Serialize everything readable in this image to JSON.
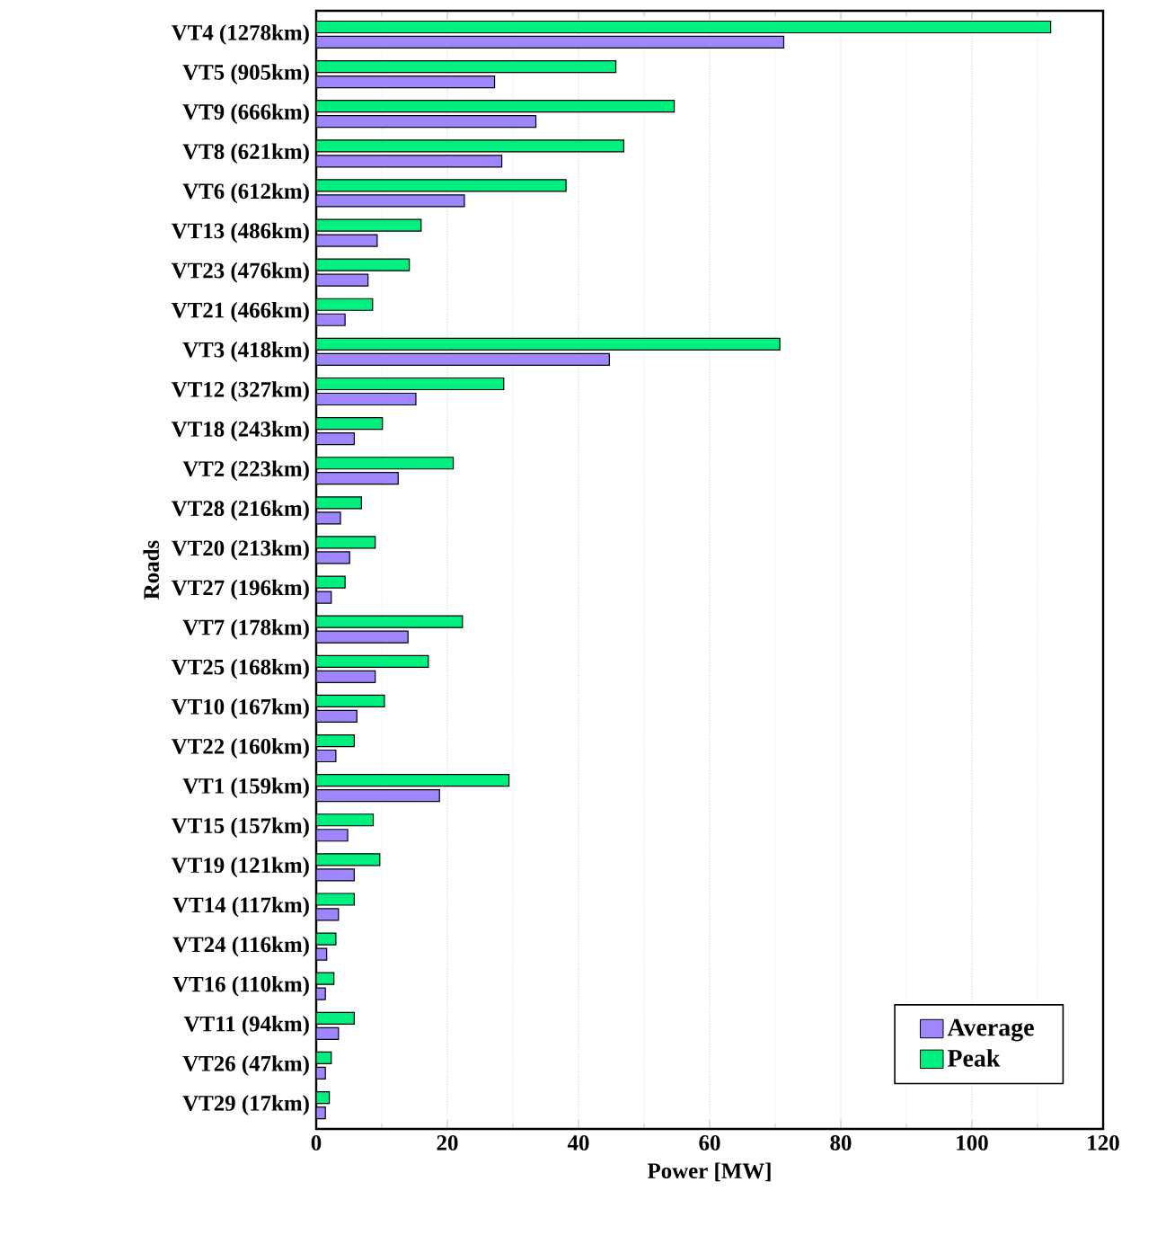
{
  "chart_data": {
    "type": "bar",
    "orientation": "horizontal",
    "xlabel": "Power [MW]",
    "ylabel": "Roads",
    "categories": [
      "VT4 (1278km)",
      "VT5 (905km)",
      "VT9 (666km)",
      "VT8 (621km)",
      "VT6 (612km)",
      "VT13 (486km)",
      "VT23 (476km)",
      "VT21 (466km)",
      "VT3 (418km)",
      "VT12 (327km)",
      "VT18 (243km)",
      "VT2 (223km)",
      "VT28 (216km)",
      "VT20 (213km)",
      "VT27 (196km)",
      "VT7 (178km)",
      "VT25 (168km)",
      "VT10 (167km)",
      "VT22 (160km)",
      "VT1 (159km)",
      "VT15 (157km)",
      "VT19 (121km)",
      "VT14 (117km)",
      "VT24 (116km)",
      "VT16 (110km)",
      "VT11 (94km)",
      "VT26 (47km)",
      "VT29 (17km)"
    ],
    "series": [
      {
        "name": "Average",
        "color": "#9f86ff",
        "values": [
          71.3,
          27.2,
          33.5,
          28.3,
          22.6,
          9.3,
          7.9,
          4.4,
          44.7,
          15.2,
          5.8,
          12.5,
          3.7,
          5.1,
          2.3,
          14.0,
          9.0,
          6.2,
          3.0,
          18.8,
          4.8,
          5.8,
          3.4,
          1.6,
          1.4,
          3.4,
          1.4,
          1.4
        ]
      },
      {
        "name": "Peak",
        "color": "#00f080",
        "values": [
          112.0,
          45.7,
          54.6,
          46.9,
          38.1,
          16.0,
          14.2,
          8.6,
          70.7,
          28.6,
          10.1,
          20.9,
          6.9,
          9.0,
          4.4,
          22.3,
          17.1,
          10.4,
          5.8,
          29.4,
          8.7,
          9.7,
          5.8,
          3.0,
          2.7,
          5.8,
          2.3,
          2.0
        ]
      }
    ],
    "xlim": [
      0,
      120
    ],
    "xticks": [
      0,
      20,
      40,
      60,
      80,
      100,
      120
    ],
    "grid": "x",
    "legend": "bottom right"
  }
}
